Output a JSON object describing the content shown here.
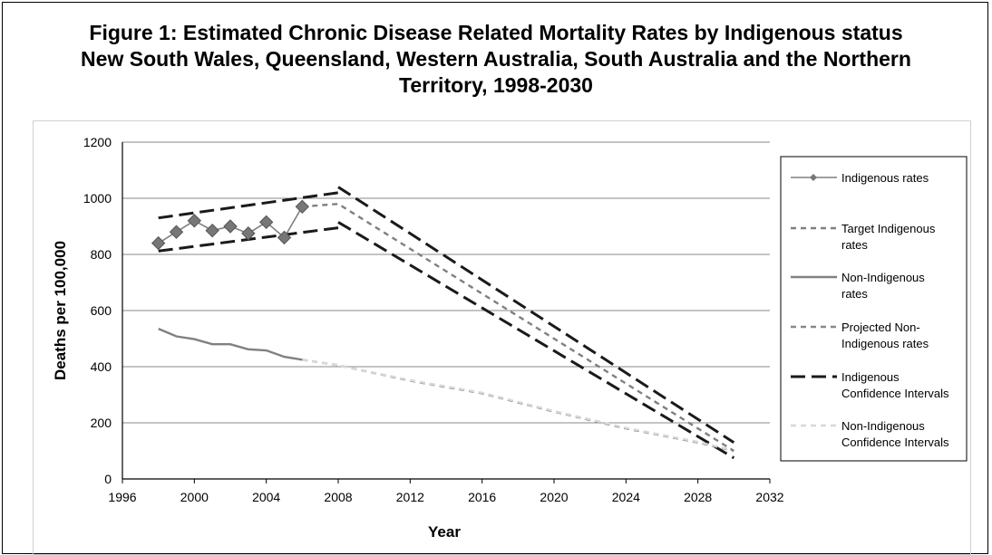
{
  "chart_data": {
    "type": "line",
    "title_lines": [
      "Figure 1: Estimated Chronic Disease Related Mortality Rates by Indigenous status",
      "New South Wales, Queensland, Western Australia, South Australia and the Northern",
      "Territory, 1998-2030"
    ],
    "xlabel": "Year",
    "ylabel": "Deaths per 100,000",
    "xlim": [
      1996,
      2032
    ],
    "ylim": [
      0,
      1200
    ],
    "xticks": [
      1996,
      2000,
      2004,
      2008,
      2012,
      2016,
      2020,
      2024,
      2028,
      2032
    ],
    "yticks": [
      0,
      200,
      400,
      600,
      800,
      1000,
      1200
    ],
    "grid": "horizontal",
    "legend_position": "right",
    "series": [
      {
        "name": "Indigenous rates",
        "style": "solid-diamond",
        "color": "#808080",
        "points": [
          [
            1998,
            840
          ],
          [
            1999,
            880
          ],
          [
            2000,
            920
          ],
          [
            2001,
            885
          ],
          [
            2002,
            900
          ],
          [
            2003,
            875
          ],
          [
            2004,
            915
          ],
          [
            2005,
            860
          ],
          [
            2006,
            970
          ]
        ]
      },
      {
        "name": "Target Indigenous rates",
        "style": "short-dash",
        "color": "#808080",
        "points": [
          [
            2006,
            970
          ],
          [
            2008,
            980
          ],
          [
            2030,
            100
          ]
        ]
      },
      {
        "name": "Non-Indigenous rates",
        "style": "solid",
        "color": "#808080",
        "points": [
          [
            1998,
            535
          ],
          [
            1999,
            508
          ],
          [
            2000,
            498
          ],
          [
            2001,
            480
          ],
          [
            2002,
            480
          ],
          [
            2003,
            462
          ],
          [
            2004,
            458
          ],
          [
            2005,
            435
          ],
          [
            2006,
            425
          ]
        ]
      },
      {
        "name": "Projected Non-Indigenous rates",
        "style": "short-dash",
        "color": "#888888",
        "points": [
          [
            2006,
            425
          ],
          [
            2008,
            405
          ],
          [
            2012,
            350
          ],
          [
            2016,
            305
          ],
          [
            2020,
            240
          ],
          [
            2024,
            180
          ],
          [
            2028,
            130
          ],
          [
            2030,
            100
          ]
        ]
      },
      {
        "name": "Indigenous Confidence Intervals",
        "style": "long-dash",
        "color": "#1a1a1a",
        "lines": [
          [
            [
              1998,
              930
            ],
            [
              2008,
              1020
            ]
          ],
          [
            [
              1998,
              812
            ],
            [
              2008,
              895
            ]
          ],
          [
            [
              2008,
              1040
            ],
            [
              2030,
              130
            ]
          ],
          [
            [
              2008,
              915
            ],
            [
              2030,
              75
            ]
          ]
        ]
      },
      {
        "name": "Non-Indigenous Confidence Intervals",
        "style": "short-dash",
        "color": "#d8d8d8",
        "points": [
          [
            2006,
            425
          ],
          [
            2008,
            405
          ],
          [
            2012,
            352
          ],
          [
            2016,
            307
          ],
          [
            2020,
            242
          ],
          [
            2024,
            182
          ],
          [
            2028,
            132
          ],
          [
            2030,
            102
          ]
        ]
      }
    ],
    "legend": [
      {
        "lines": [
          "Indigenous rates"
        ],
        "style": "solid-diamond",
        "color": "#808080"
      },
      {
        "lines": [
          "Target Indigenous",
          "rates"
        ],
        "style": "short-dash",
        "color": "#808080"
      },
      {
        "lines": [
          "Non-Indigenous",
          "rates"
        ],
        "style": "solid",
        "color": "#808080"
      },
      {
        "lines": [
          "Projected Non-",
          "Indigenous rates"
        ],
        "style": "short-dash",
        "color": "#888888"
      },
      {
        "lines": [
          "Indigenous",
          "Confidence Intervals"
        ],
        "style": "long-dash",
        "color": "#1a1a1a"
      },
      {
        "lines": [
          "Non-Indigenous",
          "Confidence Intervals"
        ],
        "style": "short-dash",
        "color": "#d8d8d8"
      }
    ]
  }
}
